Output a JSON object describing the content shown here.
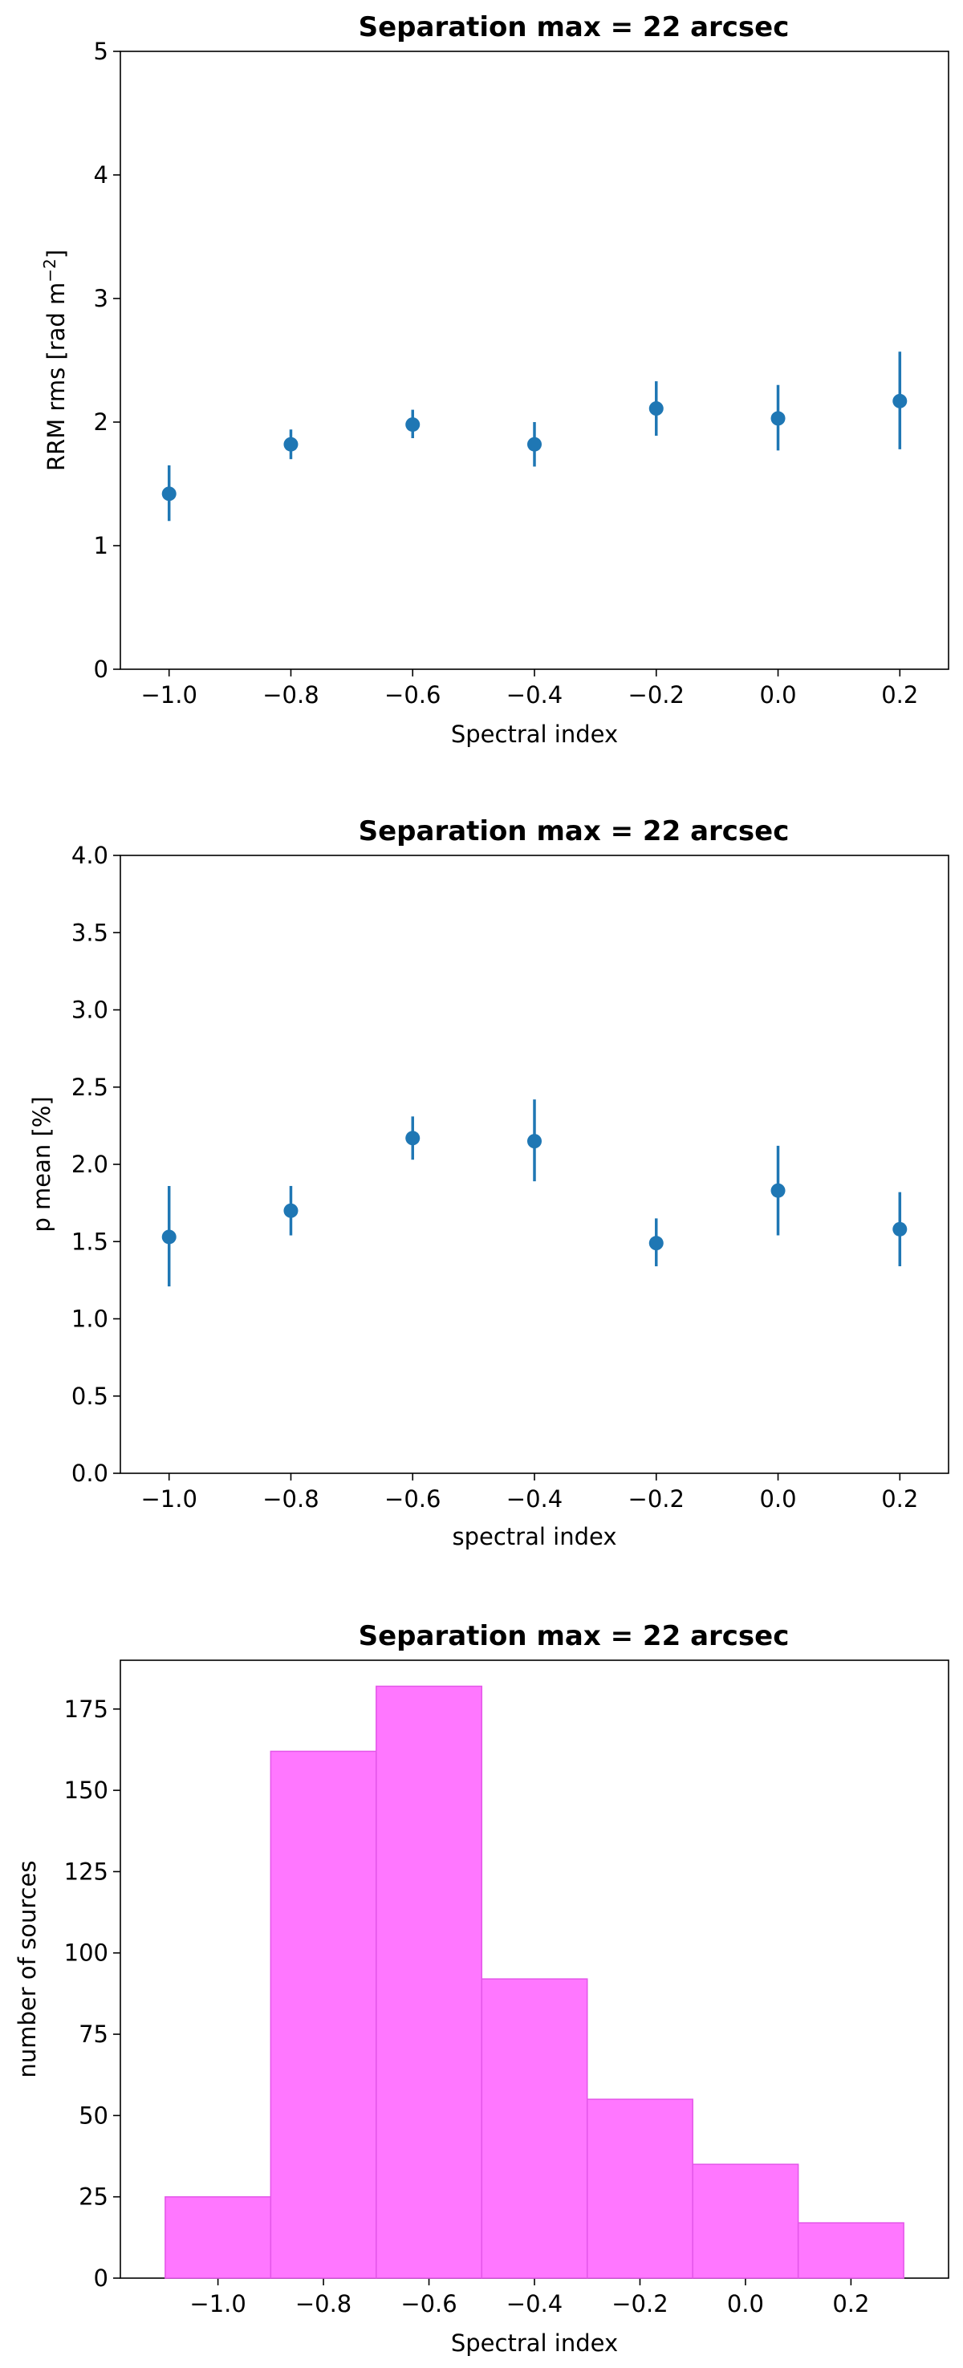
{
  "chart_data": [
    {
      "type": "scatter",
      "title": "Separation max = 22 arcsec",
      "xlabel": "Spectral index",
      "ylabel": "RRM rms [rad m",
      "ylabel_sup": "−2",
      "ylabel_end": "]",
      "xlim": [
        -1.08,
        0.28
      ],
      "ylim": [
        0,
        5
      ],
      "xticks": [
        -1.0,
        -0.8,
        -0.6,
        -0.4,
        -0.2,
        0.0,
        0.2
      ],
      "xtick_labels": [
        "−1.0",
        "−0.8",
        "−0.6",
        "−0.4",
        "−0.2",
        "0.0",
        "0.2"
      ],
      "yticks": [
        0,
        1,
        2,
        3,
        4,
        5
      ],
      "ytick_labels": [
        "0",
        "1",
        "2",
        "3",
        "4",
        "5"
      ],
      "color": "#1f77b4",
      "points": [
        {
          "x": -1.0,
          "y": 1.42,
          "ylow": 1.2,
          "yhigh": 1.65
        },
        {
          "x": -0.8,
          "y": 1.82,
          "ylow": 1.7,
          "yhigh": 1.94
        },
        {
          "x": -0.6,
          "y": 1.98,
          "ylow": 1.87,
          "yhigh": 2.1
        },
        {
          "x": -0.4,
          "y": 1.82,
          "ylow": 1.64,
          "yhigh": 2.0
        },
        {
          "x": -0.2,
          "y": 2.11,
          "ylow": 1.89,
          "yhigh": 2.33
        },
        {
          "x": 0.0,
          "y": 2.03,
          "ylow": 1.77,
          "yhigh": 2.3
        },
        {
          "x": 0.2,
          "y": 2.17,
          "ylow": 1.78,
          "yhigh": 2.57
        }
      ]
    },
    {
      "type": "scatter",
      "title": "Separation max = 22 arcsec",
      "xlabel": "spectral index",
      "ylabel": "p mean [%]",
      "xlim": [
        -1.08,
        0.28
      ],
      "ylim": [
        0,
        4
      ],
      "xticks": [
        -1.0,
        -0.8,
        -0.6,
        -0.4,
        -0.2,
        0.0,
        0.2
      ],
      "xtick_labels": [
        "−1.0",
        "−0.8",
        "−0.6",
        "−0.4",
        "−0.2",
        "0.0",
        "0.2"
      ],
      "yticks": [
        0,
        0.5,
        1,
        1.5,
        2,
        2.5,
        3,
        3.5,
        4
      ],
      "ytick_labels": [
        "0.0",
        "0.5",
        "1.0",
        "1.5",
        "2.0",
        "2.5",
        "3.0",
        "3.5",
        "4.0"
      ],
      "color": "#1f77b4",
      "points": [
        {
          "x": -1.0,
          "y": 1.53,
          "ylow": 1.21,
          "yhigh": 1.86
        },
        {
          "x": -0.8,
          "y": 1.7,
          "ylow": 1.54,
          "yhigh": 1.86
        },
        {
          "x": -0.6,
          "y": 2.17,
          "ylow": 2.03,
          "yhigh": 2.31
        },
        {
          "x": -0.4,
          "y": 2.15,
          "ylow": 1.89,
          "yhigh": 2.42
        },
        {
          "x": -0.2,
          "y": 1.49,
          "ylow": 1.34,
          "yhigh": 1.65
        },
        {
          "x": 0.0,
          "y": 1.83,
          "ylow": 1.54,
          "yhigh": 2.12
        },
        {
          "x": 0.2,
          "y": 1.58,
          "ylow": 1.34,
          "yhigh": 1.82
        }
      ]
    },
    {
      "type": "bar",
      "title": "Separation max = 22 arcsec",
      "xlabel": "Spectral index",
      "ylabel": "number of sources",
      "xlim": [
        -1.185,
        0.385
      ],
      "ylim": [
        0,
        190
      ],
      "xticks": [
        -1.0,
        -0.8,
        -0.6,
        -0.4,
        -0.2,
        0.0,
        0.2
      ],
      "xtick_labels": [
        "−1.0",
        "−0.8",
        "−0.6",
        "−0.4",
        "−0.2",
        "0.0",
        "0.2"
      ],
      "yticks": [
        0,
        25,
        50,
        75,
        100,
        125,
        150,
        175
      ],
      "ytick_labels": [
        "0",
        "25",
        "50",
        "75",
        "100",
        "125",
        "150",
        "175"
      ],
      "color": "#ff77ff",
      "edge_color": "#e356e8",
      "bins": [
        {
          "x0": -1.1,
          "x1": -0.9,
          "count": 25
        },
        {
          "x0": -0.9,
          "x1": -0.7,
          "count": 162
        },
        {
          "x0": -0.7,
          "x1": -0.5,
          "count": 182
        },
        {
          "x0": -0.5,
          "x1": -0.3,
          "count": 92
        },
        {
          "x0": -0.3,
          "x1": -0.1,
          "count": 55
        },
        {
          "x0": -0.1,
          "x1": 0.1,
          "count": 35
        },
        {
          "x0": 0.1,
          "x1": 0.3,
          "count": 17
        }
      ]
    }
  ]
}
